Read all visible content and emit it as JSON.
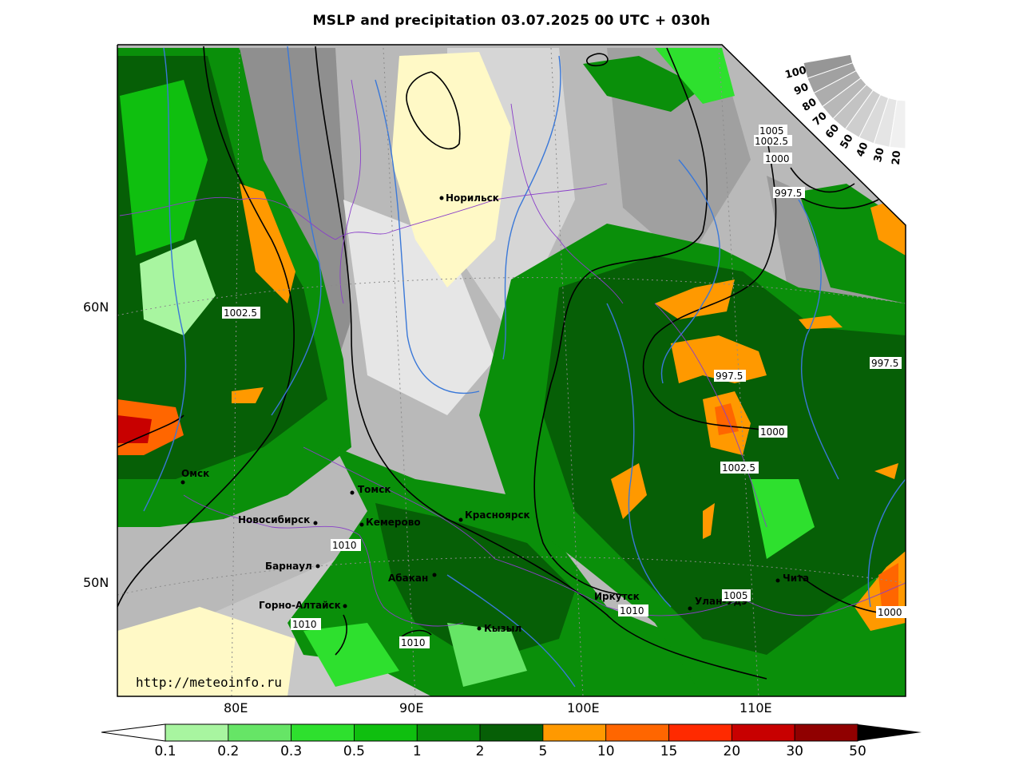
{
  "title": "MSLP and precipitation 03.07.2025 00 UTC + 030h",
  "url": "http://meteoinfo.ru",
  "lat_labels": [
    "60N",
    "50N"
  ],
  "lon_labels": [
    "80E",
    "90E",
    "100E",
    "110E"
  ],
  "cities": [
    "Норильск",
    "Омск",
    "Томск",
    "Новосибирск",
    "Кемерово",
    "Красноярск",
    "Барнаул",
    "Абакан",
    "Горно-Алтайск",
    "Кызыл",
    "Иркутск",
    "Улан-Удэ",
    "Чита"
  ],
  "isobar_labels": [
    "1002.5",
    "1005",
    "1002.5",
    "1000",
    "997.5",
    "997.5",
    "997.5",
    "1000",
    "1002.5",
    "1010",
    "1010",
    "1010",
    "1010",
    "1005",
    "1000"
  ],
  "cloud_scale_labels": [
    "100",
    "90",
    "80",
    "70",
    "60",
    "50",
    "40",
    "30",
    "20"
  ],
  "colorbar": {
    "labels": [
      "0.1",
      "0.2",
      "0.3",
      "0.5",
      "1",
      "2",
      "5",
      "10",
      "15",
      "20",
      "30",
      "50"
    ],
    "colors": [
      "#a8f5a0",
      "#66e566",
      "#2ee02e",
      "#0fbf0f",
      "#0a8f0a",
      "#065f06",
      "#ff9900",
      "#ff6600",
      "#ff2a00",
      "#c80000",
      "#900000"
    ]
  }
}
